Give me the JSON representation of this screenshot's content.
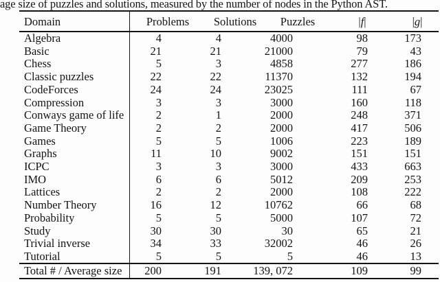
{
  "caption": "age size of puzzles and solutions, measured by the number of nodes in the Python AST.",
  "table": {
    "headers": [
      {
        "label": "Domain"
      },
      {
        "label": "Problems"
      },
      {
        "label": "Solutions"
      },
      {
        "label": "Puzzles"
      },
      {
        "label": "|f|",
        "math": true
      },
      {
        "label": "|g|",
        "math": true
      }
    ],
    "rows": [
      {
        "domain": "Algebra",
        "problems": "4",
        "solutions": "4",
        "puzzles": "4000",
        "f": "98",
        "g": "173"
      },
      {
        "domain": "Basic",
        "problems": "21",
        "solutions": "21",
        "puzzles": "21000",
        "f": "79",
        "g": "43"
      },
      {
        "domain": "Chess",
        "problems": "5",
        "solutions": "3",
        "puzzles": "4858",
        "f": "277",
        "g": "186"
      },
      {
        "domain": "Classic puzzles",
        "problems": "22",
        "solutions": "22",
        "puzzles": "11370",
        "f": "132",
        "g": "194"
      },
      {
        "domain": "CodeForces",
        "problems": "24",
        "solutions": "24",
        "puzzles": "23025",
        "f": "111",
        "g": "67"
      },
      {
        "domain": "Compression",
        "problems": "3",
        "solutions": "3",
        "puzzles": "3000",
        "f": "160",
        "g": "118"
      },
      {
        "domain": "Conways game of life",
        "problems": "2",
        "solutions": "1",
        "puzzles": "2000",
        "f": "248",
        "g": "371"
      },
      {
        "domain": "Game Theory",
        "problems": "2",
        "solutions": "2",
        "puzzles": "2000",
        "f": "417",
        "g": "506"
      },
      {
        "domain": "Games",
        "problems": "5",
        "solutions": "5",
        "puzzles": "1006",
        "f": "223",
        "g": "189"
      },
      {
        "domain": "Graphs",
        "problems": "11",
        "solutions": "10",
        "puzzles": "9002",
        "f": "151",
        "g": "151"
      },
      {
        "domain": "ICPC",
        "problems": "3",
        "solutions": "3",
        "puzzles": "3000",
        "f": "433",
        "g": "663"
      },
      {
        "domain": "IMO",
        "problems": "6",
        "solutions": "6",
        "puzzles": "5012",
        "f": "209",
        "g": "253"
      },
      {
        "domain": "Lattices",
        "problems": "2",
        "solutions": "2",
        "puzzles": "2000",
        "f": "108",
        "g": "222"
      },
      {
        "domain": "Number Theory",
        "problems": "16",
        "solutions": "12",
        "puzzles": "10762",
        "f": "66",
        "g": "68"
      },
      {
        "domain": "Probability",
        "problems": "5",
        "solutions": "5",
        "puzzles": "5000",
        "f": "107",
        "g": "72"
      },
      {
        "domain": "Study",
        "problems": "30",
        "solutions": "30",
        "puzzles": "30",
        "f": "65",
        "g": "21"
      },
      {
        "domain": "Trivial inverse",
        "problems": "34",
        "solutions": "33",
        "puzzles": "32002",
        "f": "46",
        "g": "26"
      },
      {
        "domain": "Tutorial",
        "problems": "5",
        "solutions": "5",
        "puzzles": "5",
        "f": "46",
        "g": "13"
      }
    ],
    "total": {
      "domain": "Total # / Average size",
      "problems": "200",
      "solutions": "191",
      "puzzles": "139, 072",
      "f": "109",
      "g": "99"
    }
  }
}
